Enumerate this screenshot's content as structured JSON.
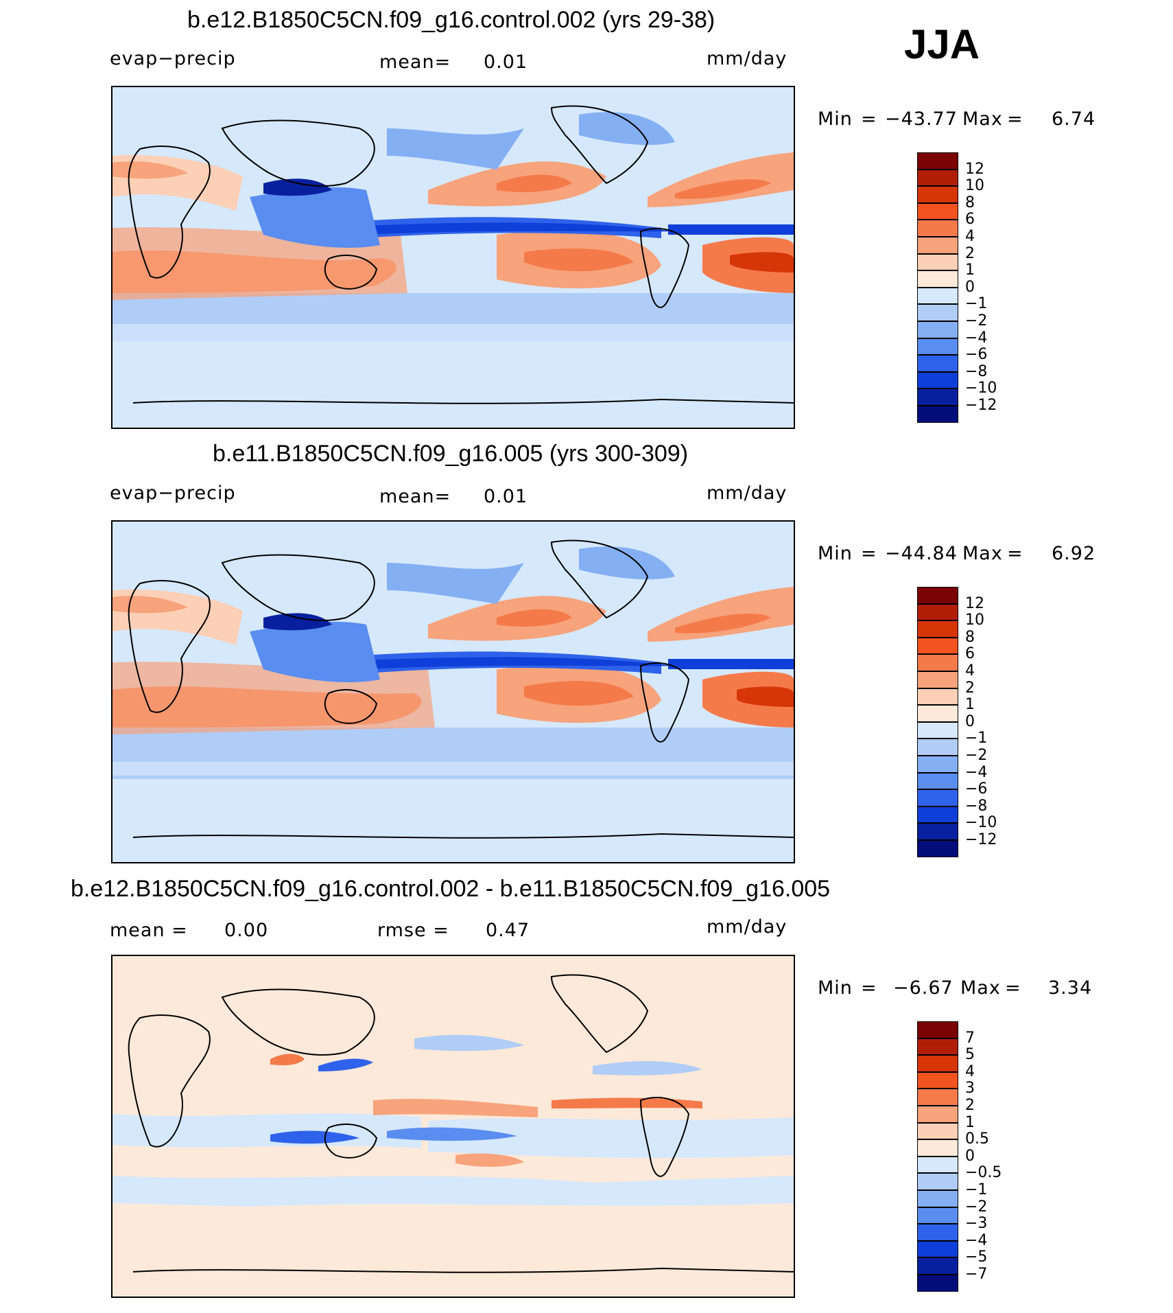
{
  "season": "JJA",
  "panels": [
    {
      "id": "top",
      "title": "b.e12.B1850C5CN.f09_g16.control.002 (yrs 29-38)",
      "left_label": "evap−precip",
      "center_label": "mean=",
      "center_value": "0.01",
      "right_label": "mm/day",
      "min_label": "Min",
      "min_value": "−43.77",
      "max_label": "Max",
      "max_value": "6.74",
      "colorbar_ticks": [
        "12",
        "10",
        "8",
        "6",
        "4",
        "2",
        "1",
        "0",
        "−1",
        "−2",
        "−4",
        "−6",
        "−8",
        "−10",
        "−12"
      ]
    },
    {
      "id": "middle",
      "title": "b.e11.B1850C5CN.f09_g16.005 (yrs 300-309)",
      "left_label": "evap−precip",
      "center_label": "mean=",
      "center_value": "0.01",
      "right_label": "mm/day",
      "min_label": "Min",
      "min_value": "−44.84",
      "max_label": "Max",
      "max_value": "6.92",
      "colorbar_ticks": [
        "12",
        "10",
        "8",
        "6",
        "4",
        "2",
        "1",
        "0",
        "−1",
        "−2",
        "−4",
        "−6",
        "−8",
        "−10",
        "−12"
      ]
    },
    {
      "id": "bottom",
      "title": "b.e12.B1850C5CN.f09_g16.control.002 - b.e11.B1850C5CN.f09_g16.005",
      "left_label": "mean =",
      "left_value": "0.00",
      "center_label": "rmse =",
      "center_value": "0.47",
      "right_label": "mm/day",
      "min_label": "Min",
      "min_value": "−6.67",
      "max_label": "Max",
      "max_value": "3.34",
      "colorbar_ticks": [
        "7",
        "5",
        "4",
        "3",
        "2",
        "1",
        "0.5",
        "0",
        "−0.5",
        "−1",
        "−2",
        "−3",
        "−4",
        "−5",
        "−7"
      ]
    }
  ],
  "colors": {
    "colorbar_scale": [
      "#7a0403",
      "#b01e07",
      "#d63508",
      "#f2531f",
      "#f57a4a",
      "#f7a37c",
      "#fcd0b6",
      "#fde9d9",
      "#d6e8fb",
      "#b0cdf7",
      "#84aff3",
      "#5a8df0",
      "#2f62ea",
      "#0f3fd8",
      "#08209e",
      "#020d7a"
    ],
    "land_outline": "#000000"
  }
}
